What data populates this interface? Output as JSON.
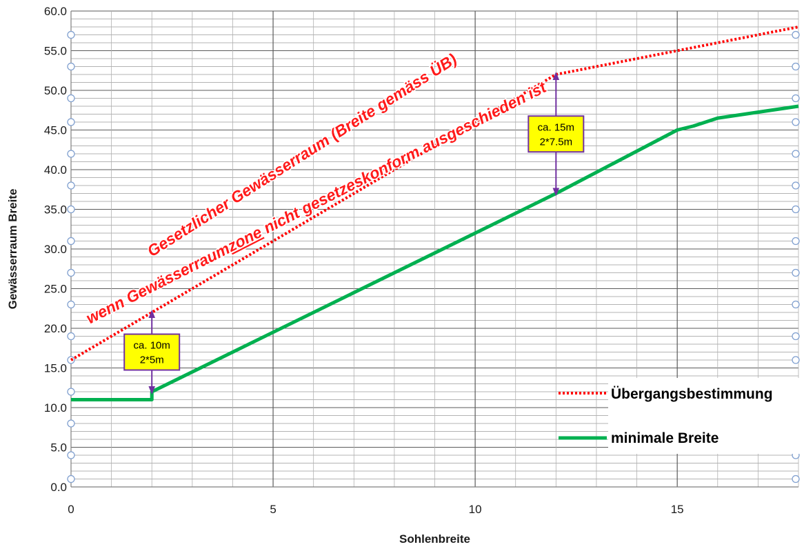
{
  "chart_data": {
    "type": "line",
    "xlabel": "Sohlenbreite",
    "ylabel": "Gewässerraum Breite",
    "xlim": [
      0,
      18
    ],
    "ylim": [
      0,
      60
    ],
    "x_ticks": [
      "0",
      "5",
      "10",
      "15"
    ],
    "y_ticks": [
      "0.0",
      "5.0",
      "10.0",
      "15.0",
      "20.0",
      "25.0",
      "30.0",
      "35.0",
      "40.0",
      "45.0",
      "50.0",
      "55.0",
      "60.0"
    ],
    "grid": true,
    "legend_position": "bottom-right",
    "series": [
      {
        "name": "Übergangsbestimmung",
        "color": "#ff0000",
        "style": "dotted",
        "x": [
          0,
          2,
          12,
          15,
          18
        ],
        "y": [
          16,
          22,
          52,
          55,
          58
        ]
      },
      {
        "name": "minimale Breite",
        "color": "#00b050",
        "style": "solid",
        "x": [
          0,
          2,
          2,
          12,
          15,
          15.4,
          16,
          18
        ],
        "y": [
          11,
          11,
          12,
          37,
          45,
          45.5,
          46.5,
          48
        ]
      }
    ],
    "side_markers": {
      "left_y": [
        1,
        4,
        8,
        12,
        16,
        19,
        23,
        27,
        31,
        35,
        38,
        42,
        46,
        49,
        53,
        57
      ],
      "right_y": [
        1,
        4,
        8,
        12,
        16,
        19,
        23,
        27,
        31,
        35,
        38,
        42,
        46,
        49,
        53,
        57
      ]
    },
    "annotations": {
      "line1": "Gesetzlicher Gewässerraum (Breite gemäss ÜB)",
      "line2_pre": "wenn Gewässerraum",
      "line2_underlined": "zone",
      "line2_post": " nicht gesetzeskonform ausgeschieden ist",
      "arrows": [
        {
          "x": 2,
          "y_from": 12,
          "y_to": 22,
          "label1": "ca. 10m",
          "label2": "2*5m"
        },
        {
          "x": 12,
          "y_from": 37,
          "y_to": 52,
          "label1": "ca. 15m",
          "label2": "2*7.5m"
        }
      ]
    }
  }
}
